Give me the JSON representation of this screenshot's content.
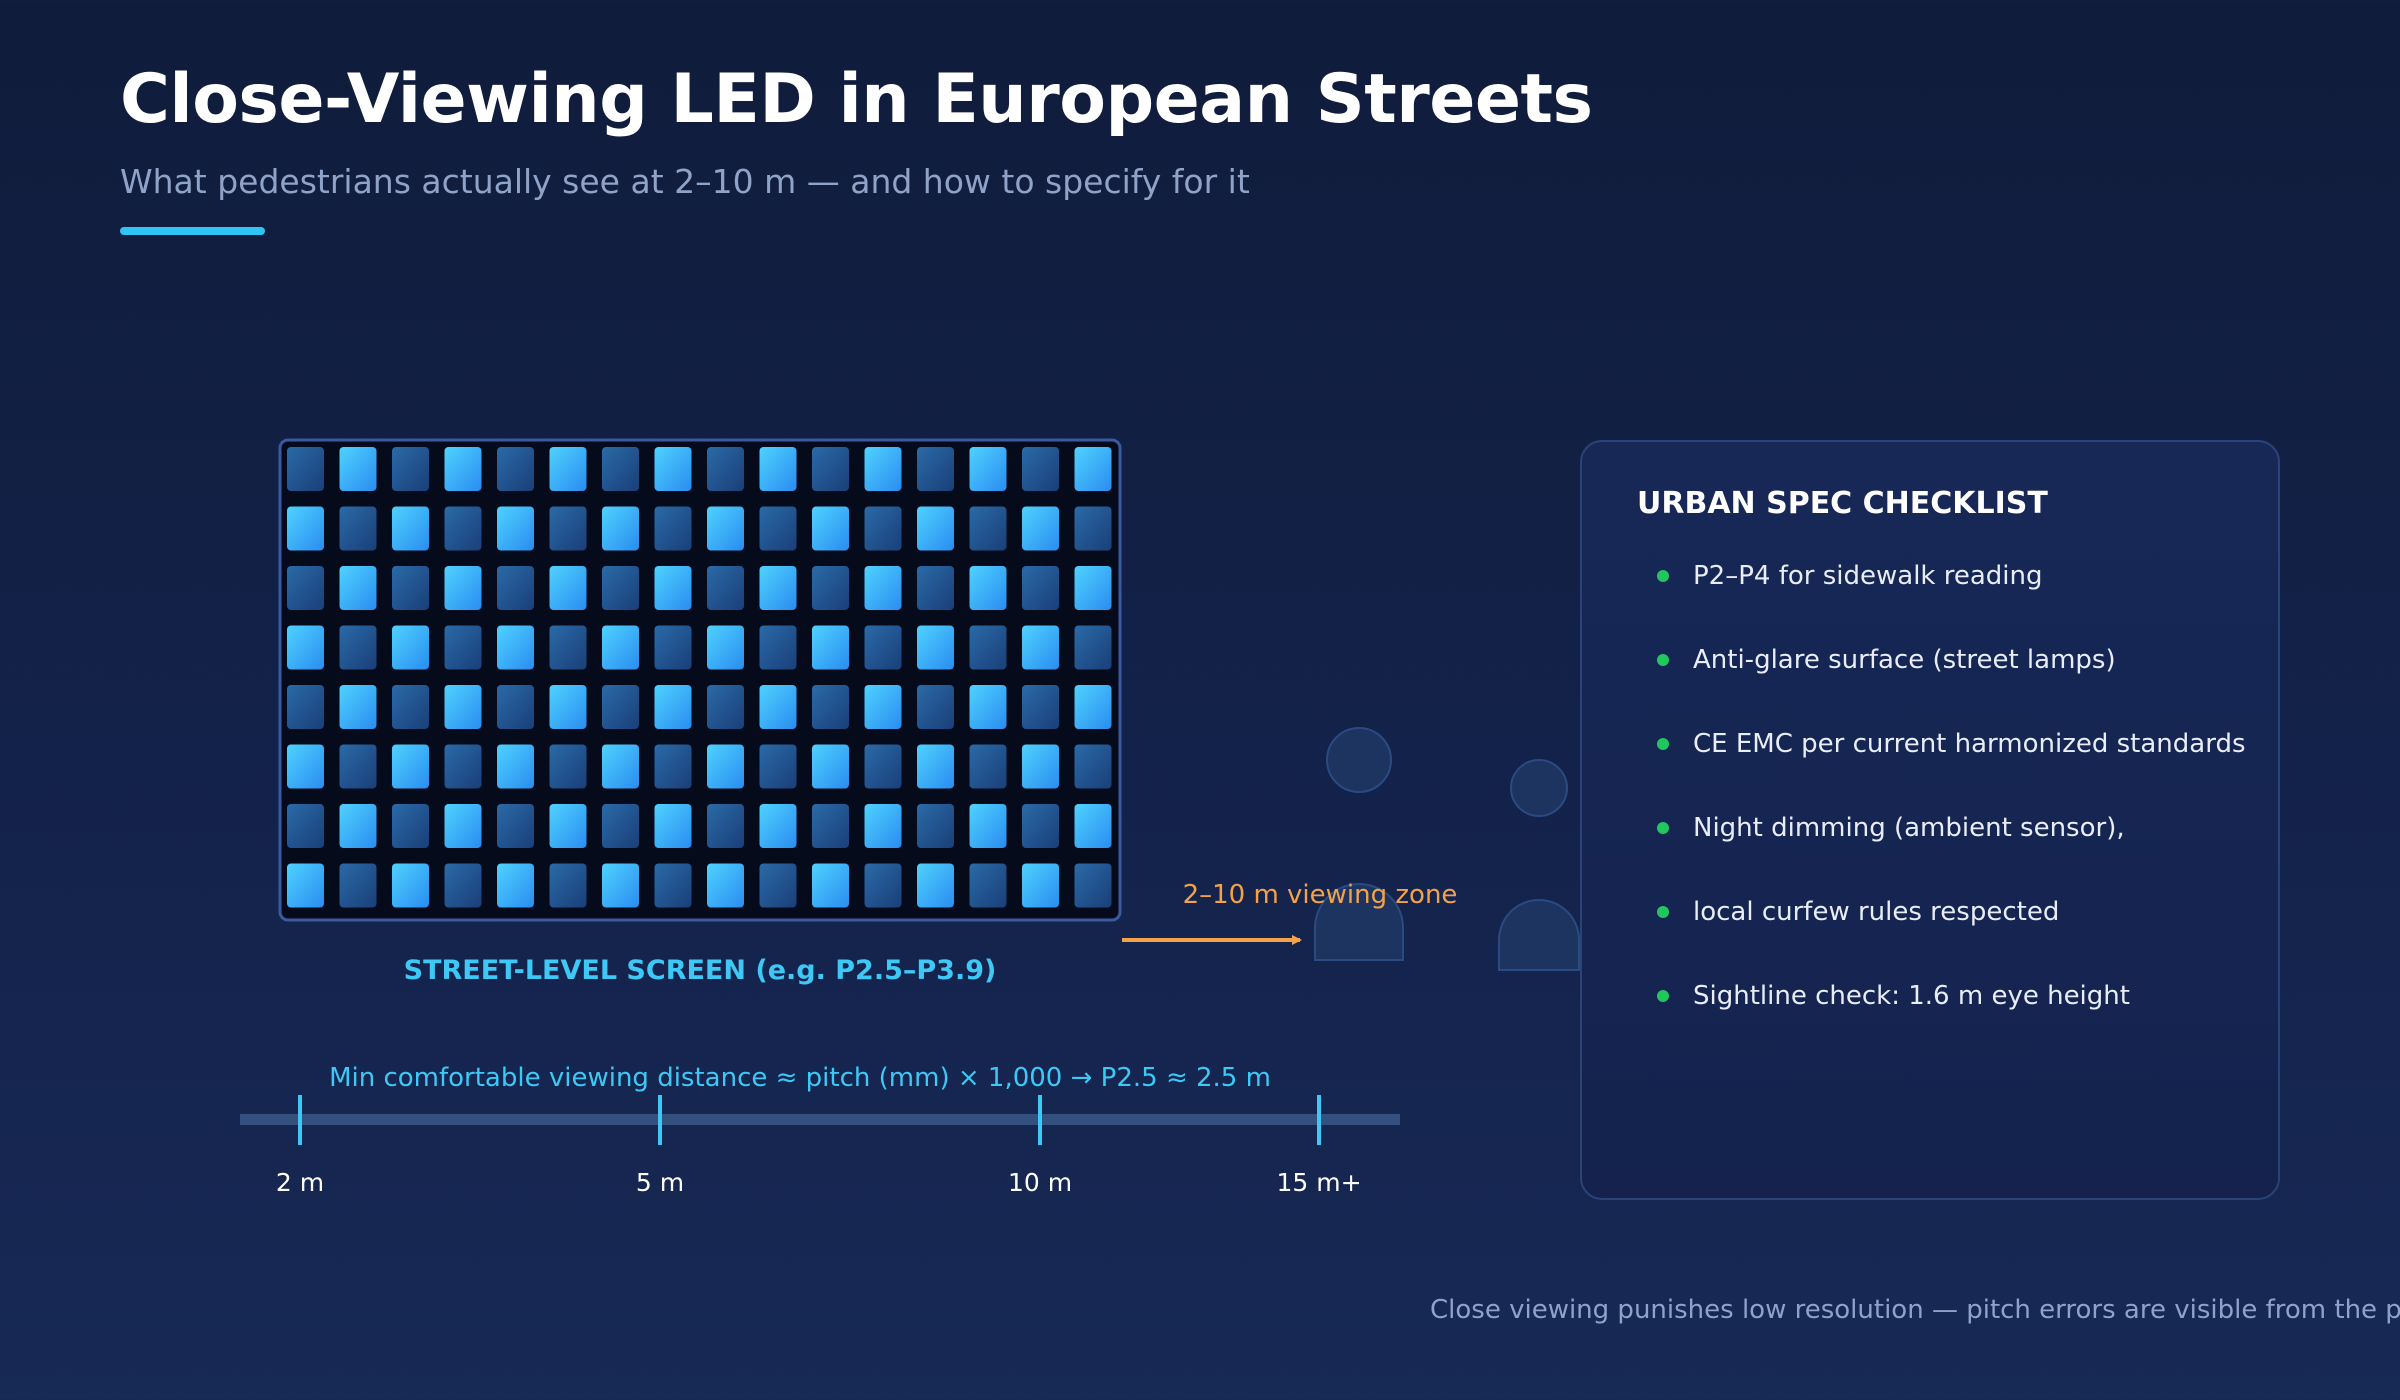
{
  "header": {
    "title": "Close-Viewing LED in European Streets",
    "subtitle": "What pedestrians actually see at 2–10 m — and how to specify for it"
  },
  "diagram": {
    "screen_caption": "STREET-LEVEL SCREEN (e.g. P2.5–P3.9)",
    "led_grid": {
      "rows": 8,
      "columns": 16
    },
    "viewing_zone_label": "2–10 m viewing zone",
    "formula": "Min comfortable viewing distance ≈ pitch (mm) × 1,000 → P2.5 ≈ 2.5 m",
    "distance_scale": {
      "ticks": [
        {
          "label": "2 m",
          "value": 2
        },
        {
          "label": "5 m",
          "value": 5
        },
        {
          "label": "10 m",
          "value": 10
        },
        {
          "label": "15 m+",
          "value": 15
        }
      ]
    }
  },
  "checklist": {
    "title": "URBAN SPEC CHECKLIST",
    "items": [
      "P2–P4 for sidewalk reading",
      "Anti-glare surface (street lamps)",
      "CE EMC per current harmonized standards",
      "Night dimming (ambient sensor),",
      "local curfew rules respected",
      "Sightline check: 1.6 m eye height"
    ]
  },
  "footer": {
    "note": "Close viewing punishes low resolution — pitch errors are visible from the paveme"
  },
  "colors": {
    "background": "#101c3b",
    "accent": "#2ec5f5",
    "caption": "#3ec8f5",
    "zone": "#f4a24a",
    "check": "#22c55e",
    "led_bright_top": "#4fd2ff",
    "led_bright_bottom": "#2a8cf0",
    "led_dim_top": "#2a6aa8",
    "led_dim_bottom": "#1a3f78"
  }
}
